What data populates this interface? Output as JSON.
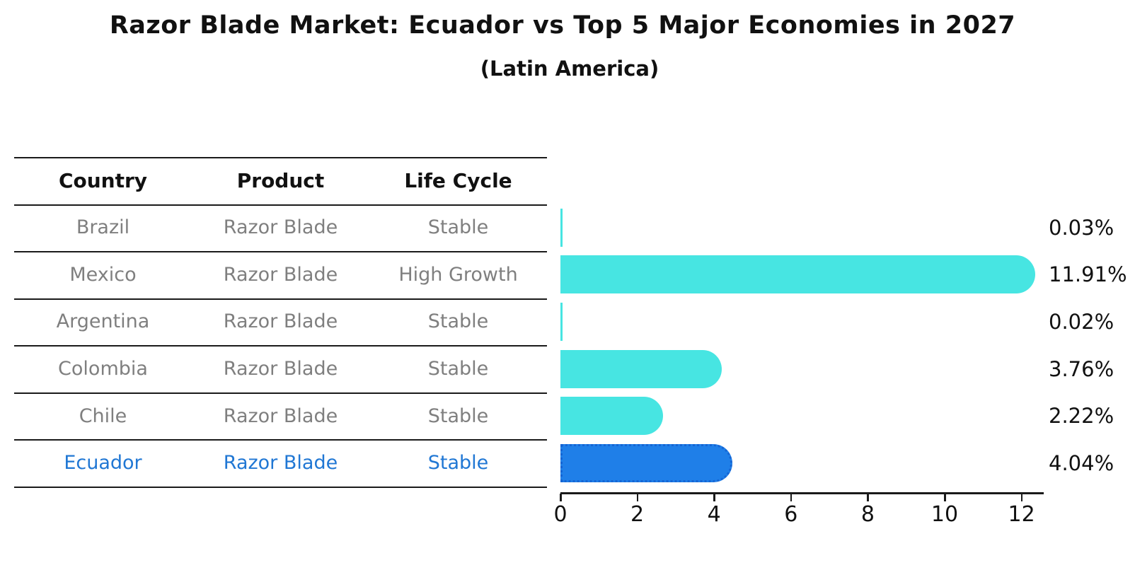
{
  "title": "Razor Blade Market: Ecuador vs Top 5 Major Economies in 2027",
  "subtitle": "(Latin America)",
  "table": {
    "headers": [
      "Country",
      "Product",
      "Life Cycle"
    ],
    "rows": [
      {
        "country": "Brazil",
        "product": "Razor Blade",
        "life_cycle": "Stable",
        "highlight": false
      },
      {
        "country": "Mexico",
        "product": "Razor Blade",
        "life_cycle": "High Growth",
        "highlight": false
      },
      {
        "country": "Argentina",
        "product": "Razor Blade",
        "life_cycle": "Stable",
        "highlight": false
      },
      {
        "country": "Colombia",
        "product": "Razor Blade",
        "life_cycle": "Stable",
        "highlight": false
      },
      {
        "country": "Chile",
        "product": "Razor Blade",
        "life_cycle": "Stable",
        "highlight": false
      },
      {
        "country": "Ecuador",
        "product": "Razor Blade",
        "life_cycle": "Stable",
        "highlight": true
      }
    ]
  },
  "chart_data": {
    "type": "bar",
    "orientation": "horizontal",
    "title": "Razor Blade Market: Ecuador vs Top 5 Major Economies in 2027",
    "subtitle": "(Latin America)",
    "categories": [
      "Brazil",
      "Mexico",
      "Argentina",
      "Colombia",
      "Chile",
      "Ecuador"
    ],
    "values": [
      0.03,
      11.91,
      0.02,
      3.76,
      2.22,
      4.04
    ],
    "value_labels": [
      "0.03%",
      "11.91%",
      "0.02%",
      "3.76%",
      "2.22%",
      "4.04%"
    ],
    "x_ticks": [
      0,
      2,
      4,
      6,
      8,
      10,
      12
    ],
    "xlim": [
      0,
      12.6
    ],
    "grid": false,
    "legend": "none",
    "highlight_category": "Ecuador",
    "colors": {
      "bar": "#47e5e2",
      "highlight_bar": "#1f7fe8",
      "highlight_border": "#1565d4",
      "row_text": "#7f7f7f",
      "highlight_text": "#2077d4",
      "axis": "#1a1a1a",
      "value_text": "#111111"
    }
  }
}
